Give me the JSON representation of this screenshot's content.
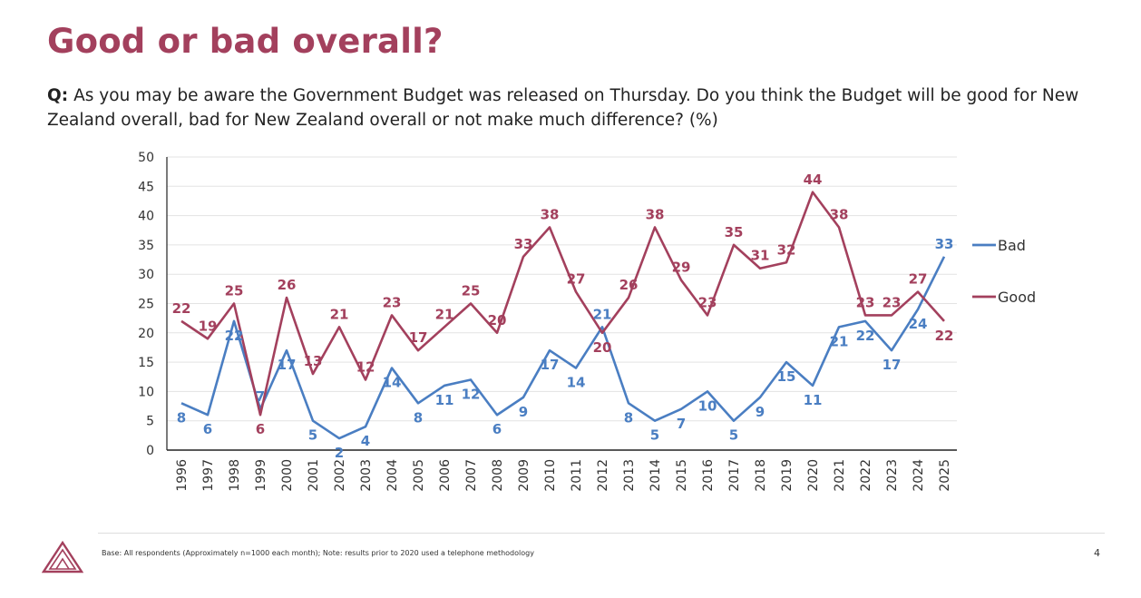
{
  "slide": {
    "title": "Good or bad overall?",
    "question_label": "Q:",
    "question_text": "As you may be aware the Government Budget was released on Thursday. Do you think the Budget will be good for New Zealand overall, bad for New Zealand overall or not make much difference? (%)",
    "footnote": "Base: All respondents (Approximately n=1000 each month); Note: results prior to 2020 used a telephone methodology",
    "page_number": "4",
    "logo_icon": "triangle-logo-icon"
  },
  "chart_data": {
    "type": "line",
    "title": "",
    "xlabel": "",
    "ylabel": "",
    "ylim": [
      0,
      50
    ],
    "yticks": [
      0,
      5,
      10,
      15,
      20,
      25,
      30,
      35,
      40,
      45,
      50
    ],
    "grid": true,
    "legend_position": "right",
    "categories": [
      "1996",
      "1997",
      "1998",
      "1999",
      "2000",
      "2001",
      "2002",
      "2003",
      "2004",
      "2005",
      "2006",
      "2007",
      "2008",
      "2009",
      "2010",
      "2011",
      "2012",
      "2013",
      "2014",
      "2015",
      "2016",
      "2017",
      "2018",
      "2019",
      "2020",
      "2021",
      "2022",
      "2023",
      "2024",
      "2025"
    ],
    "series": [
      {
        "name": "Bad",
        "color": "#4a7ec2",
        "values": [
          8,
          6,
          22,
          7,
          17,
          5,
          2,
          4,
          14,
          8,
          11,
          12,
          6,
          9,
          17,
          14,
          21,
          8,
          5,
          7,
          10,
          5,
          9,
          15,
          11,
          21,
          22,
          17,
          24,
          33
        ]
      },
      {
        "name": "Good",
        "color": "#a3405d",
        "values": [
          22,
          19,
          25,
          6,
          26,
          13,
          21,
          12,
          23,
          17,
          21,
          25,
          20,
          33,
          38,
          27,
          20,
          26,
          38,
          29,
          23,
          35,
          31,
          32,
          44,
          38,
          23,
          23,
          27,
          22
        ]
      }
    ]
  }
}
